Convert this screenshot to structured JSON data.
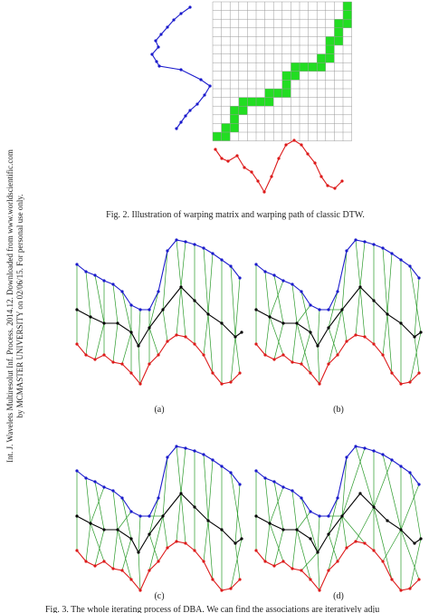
{
  "side_note": {
    "line1": "Int. J. Wavelets Multiresolut Inf. Process. 2014.12. Downloaded from www.worldscientific.com",
    "line2": "by MCMASTER UNIVERSITY on 02/06/15. For personal use only."
  },
  "figure2": {
    "caption": "Fig. 2.   Illustration of warping matrix and warping path of classic DTW."
  },
  "figure3": {
    "panels": [
      "(a)",
      "(b)",
      "(c)",
      "(d)"
    ],
    "caption": "Fig. 3.   The whole iterating process of DBA. We can find the associations are iteratively adju"
  }
}
